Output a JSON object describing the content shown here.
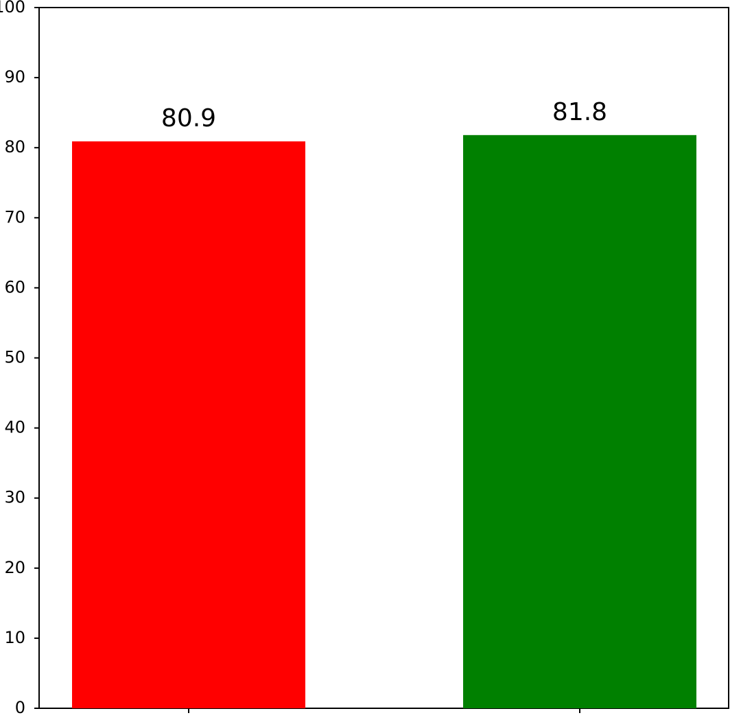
{
  "chart_data": {
    "type": "bar",
    "categories": [
      null,
      null
    ],
    "values": [
      80.9,
      81.8
    ],
    "colors": [
      "#ff0000",
      "#008000"
    ],
    "ylim": [
      0,
      100
    ],
    "yticks": [
      0,
      10,
      20,
      30,
      40,
      50,
      60,
      70,
      80,
      90,
      100
    ],
    "grid": false
  }
}
